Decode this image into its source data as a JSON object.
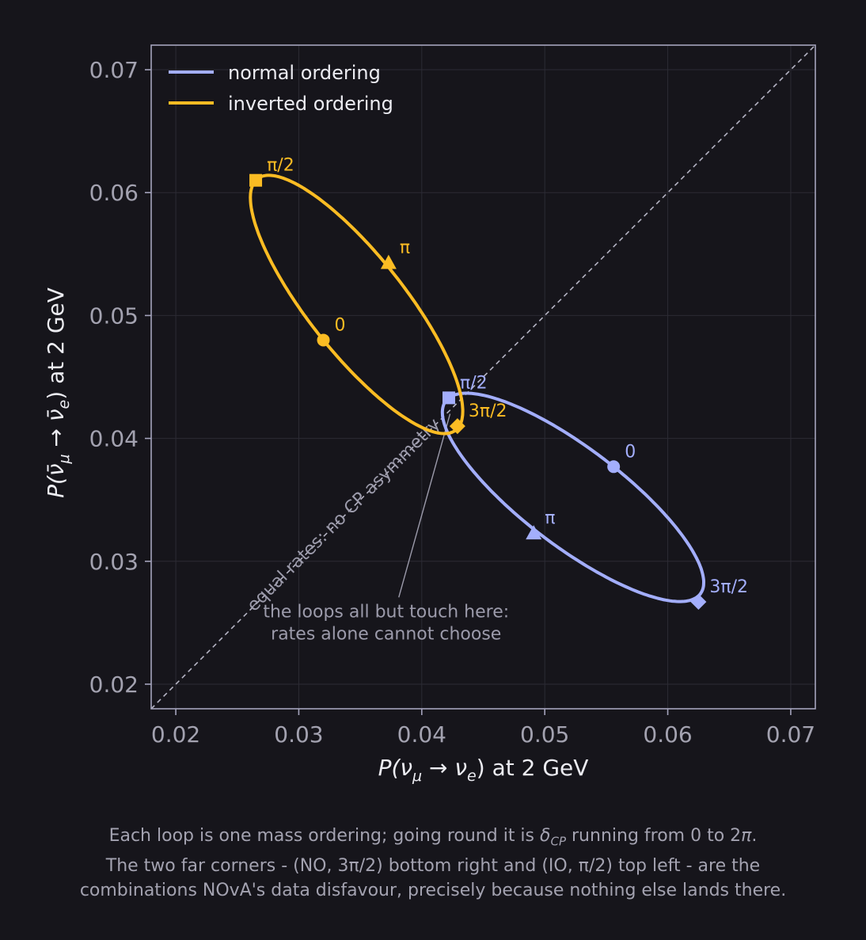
{
  "chart_data": {
    "type": "line",
    "xlabel_main": "P(ν",
    "xlabel_sub": "μ",
    "xlabel_mid": " → ν",
    "xlabel_sub2": "e",
    "xlabel_tail": ")  at 2 GeV",
    "ylabel_main": "P(ν̄",
    "ylabel_sub": "μ",
    "ylabel_mid": " → ν̄",
    "ylabel_sub2": "e",
    "ylabel_tail": ")  at 2 GeV",
    "xlim": [
      0.018,
      0.072
    ],
    "ylim": [
      0.018,
      0.072
    ],
    "xticks": [
      "0.02",
      "0.03",
      "0.04",
      "0.05",
      "0.06",
      "0.07"
    ],
    "yticks": [
      "0.02",
      "0.03",
      "0.04",
      "0.05",
      "0.06",
      "0.07"
    ],
    "grid": true,
    "legend_position": "top-left",
    "series": [
      {
        "name": "normal ordering",
        "color": "#a3aefc",
        "center": [
          0.0523,
          0.0352
        ],
        "marks": [
          {
            "label": "0",
            "marker": "circle",
            "x": 0.0556,
            "y": 0.0377
          },
          {
            "label": "π/2",
            "marker": "square",
            "x": 0.0422,
            "y": 0.0433
          },
          {
            "label": "π",
            "marker": "triangle",
            "x": 0.0491,
            "y": 0.0323
          },
          {
            "label": "3π/2",
            "marker": "diamond",
            "x": 0.0625,
            "y": 0.0267
          }
        ]
      },
      {
        "name": "inverted ordering",
        "color": "#fbbc23",
        "center": [
          0.0347,
          0.0509
        ],
        "marks": [
          {
            "label": "0",
            "marker": "circle",
            "x": 0.032,
            "y": 0.048
          },
          {
            "label": "π/2",
            "marker": "square",
            "x": 0.0265,
            "y": 0.061
          },
          {
            "label": "π",
            "marker": "triangle",
            "x": 0.0373,
            "y": 0.0543
          },
          {
            "label": "3π/2",
            "marker": "diamond",
            "x": 0.0429,
            "y": 0.041
          }
        ]
      }
    ],
    "diagonal_label": "equal rates: no CP asymmetry",
    "annotation": {
      "lines": [
        "the loops all but touch here:",
        "rates alone cannot choose"
      ],
      "text_at": [
        0.0371,
        0.025
      ],
      "arrow_to": [
        0.0423,
        0.042
      ]
    }
  },
  "caption": {
    "line1_a": "Each loop is one mass ordering; going round it is ",
    "line1_delta": "δ",
    "line1_sub": "CP",
    "line1_b": " running from 0 to 2",
    "line1_pi": "π",
    "line1_c": ".",
    "line2": "The two far corners - (NO, 3π/2) bottom right and (IO, π/2) top left - are the",
    "line3": "combinations NOvA's data disfavour, precisely because nothing else lands there."
  },
  "colors": {
    "background": "#16151b",
    "frame": "#a5a4bd",
    "grid": "#2c2b34",
    "tick_text": "#a3a2b0",
    "label_text": "#ececf2",
    "annotation": "#9c9bab"
  }
}
